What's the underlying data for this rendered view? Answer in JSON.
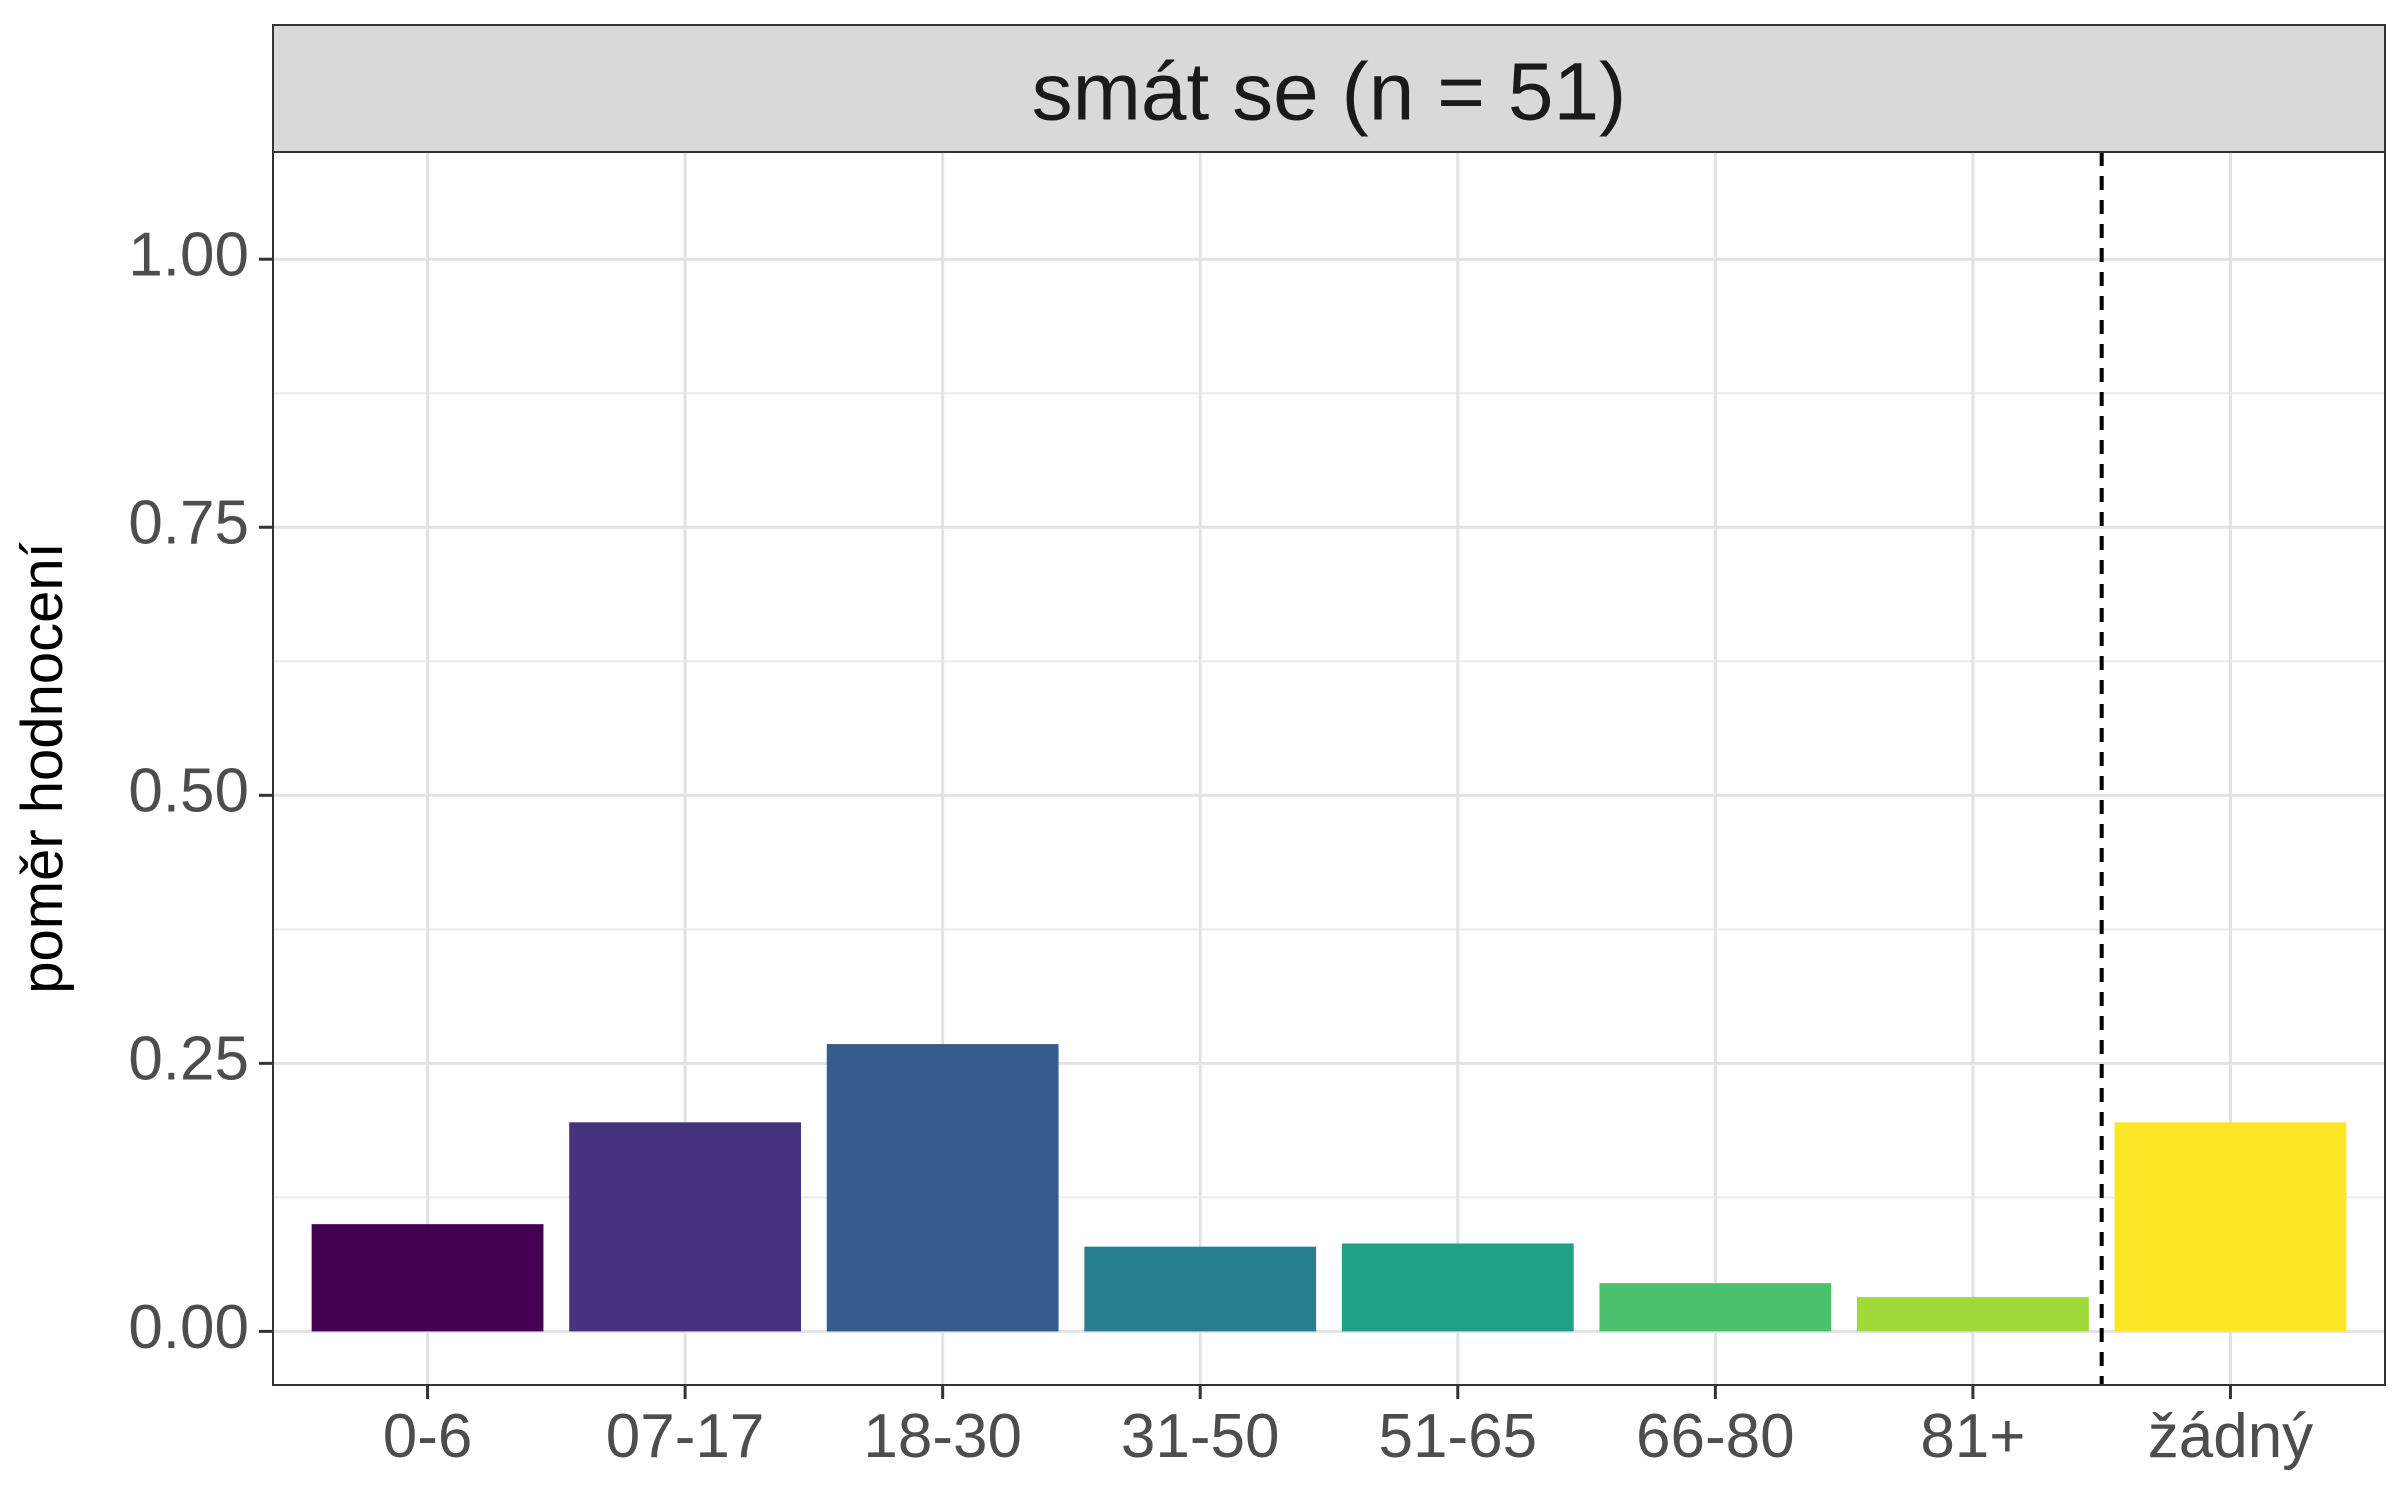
{
  "chart_data": {
    "type": "bar",
    "facet_title": "smát se (n = 51)",
    "title": "",
    "xlabel": "",
    "ylabel": "poměr hodnocení",
    "categories": [
      "0-6",
      "07-17",
      "18-30",
      "31-50",
      "51-65",
      "66-80",
      "81+",
      "žádný"
    ],
    "values": [
      0.1,
      0.195,
      0.268,
      0.079,
      0.082,
      0.045,
      0.032,
      0.195
    ],
    "colors": [
      "#440154",
      "#46327E",
      "#365C8D",
      "#277F8E",
      "#1FA187",
      "#4AC16D",
      "#9FDA3A",
      "#FDE725"
    ],
    "ylim": [
      -0.05,
      1.1
    ],
    "yticks": [
      0.0,
      0.25,
      0.5,
      0.75,
      1.0
    ],
    "ytick_labels": [
      "0.00",
      "0.25",
      "0.50",
      "0.75",
      "1.00"
    ],
    "separator": {
      "between": [
        "81+",
        "žádný"
      ],
      "style": "dashed"
    },
    "grid": true,
    "legend": "none"
  }
}
